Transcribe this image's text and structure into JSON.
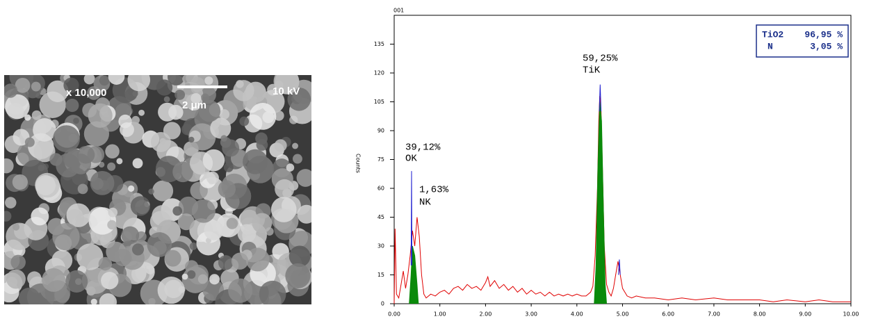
{
  "image": {
    "labels": {
      "magnification": "x 10,000",
      "scale": "2 μm",
      "voltage": "10 kV"
    }
  },
  "chart_data": {
    "type": "line",
    "title": "001",
    "y_label": "Counts",
    "xlim": [
      0,
      10
    ],
    "ylim": [
      0,
      150
    ],
    "xticks": [
      {
        "value": 0,
        "label": "0.00"
      },
      {
        "value": 1,
        "label": "1.00"
      },
      {
        "value": 2,
        "label": "2.00"
      },
      {
        "value": 3,
        "label": "3.00"
      },
      {
        "value": 4,
        "label": "4.00"
      },
      {
        "value": 5,
        "label": "5.00"
      },
      {
        "value": 6,
        "label": "6.00"
      },
      {
        "value": 7,
        "label": "7.00"
      },
      {
        "value": 8,
        "label": "8.00"
      },
      {
        "value": 9,
        "label": "9.00"
      },
      {
        "value": 10,
        "label": "10.00"
      }
    ],
    "yticks": [
      0,
      15,
      30,
      45,
      60,
      75,
      90,
      105,
      120,
      135
    ],
    "grid": false,
    "series": [
      {
        "color": "#e00000",
        "style": "line",
        "x": [
          0.0,
          0.02,
          0.05,
          0.1,
          0.15,
          0.2,
          0.25,
          0.3,
          0.35,
          0.4,
          0.45,
          0.5,
          0.55,
          0.6,
          0.65,
          0.7,
          0.8,
          0.9,
          1.0,
          1.1,
          1.2,
          1.3,
          1.4,
          1.5,
          1.6,
          1.7,
          1.8,
          1.9,
          2.0,
          2.05,
          2.1,
          2.2,
          2.3,
          2.4,
          2.5,
          2.6,
          2.7,
          2.8,
          2.9,
          3.0,
          3.1,
          3.2,
          3.3,
          3.4,
          3.5,
          3.6,
          3.7,
          3.8,
          3.9,
          4.0,
          4.1,
          4.2,
          4.3,
          4.35,
          4.4,
          4.45,
          4.48,
          4.5,
          4.53,
          4.56,
          4.6,
          4.65,
          4.7,
          4.75,
          4.8,
          4.85,
          4.9,
          4.95,
          5.0,
          5.1,
          5.2,
          5.3,
          5.5,
          5.7,
          6.0,
          6.3,
          6.6,
          7.0,
          7.3,
          7.6,
          8.0,
          8.3,
          8.6,
          9.0,
          9.3,
          9.6,
          10.0
        ],
        "values": [
          0,
          39,
          5,
          3,
          10,
          17,
          8,
          15,
          25,
          38,
          30,
          45,
          35,
          15,
          5,
          3,
          5,
          4,
          6,
          7,
          5,
          8,
          9,
          7,
          10,
          8,
          9,
          7,
          11,
          14,
          9,
          12,
          8,
          10,
          7,
          9,
          6,
          8,
          5,
          7,
          5,
          6,
          4,
          6,
          4,
          5,
          4,
          5,
          4,
          5,
          4,
          4,
          6,
          9,
          25,
          60,
          95,
          108,
          100,
          70,
          30,
          10,
          6,
          4,
          8,
          15,
          22,
          15,
          8,
          4,
          3,
          4,
          3,
          3,
          2,
          3,
          2,
          3,
          2,
          2,
          2,
          1,
          2,
          1,
          2,
          1,
          1
        ]
      },
      {
        "color": "#0a8a0a",
        "style": "area",
        "x": [
          0.33,
          0.37,
          0.4,
          0.45,
          0.5,
          0.53,
          4.38,
          4.42,
          4.46,
          4.5,
          4.54,
          4.58,
          4.62,
          4.65
        ],
        "values": [
          0,
          15,
          30,
          25,
          10,
          0,
          0,
          20,
          70,
          105,
          95,
          50,
          10,
          0
        ]
      },
      {
        "color": "#2020d0",
        "style": "line",
        "x": [
          0.37,
          0.38,
          0.39,
          2.0,
          4.49,
          4.51,
          4.53,
          4.7,
          4.91,
          4.93,
          4.95
        ],
        "values": [
          20,
          69,
          20,
          null,
          100,
          114,
          100,
          null,
          15,
          23,
          15
        ]
      }
    ],
    "annotations": [
      "39,12%",
      "OK",
      "1,63%",
      "NK",
      "59,25%",
      "TiK"
    ],
    "composition": [
      [
        "TiO2",
        "96,95 %"
      ],
      [
        "N",
        "3,05 %"
      ]
    ]
  }
}
